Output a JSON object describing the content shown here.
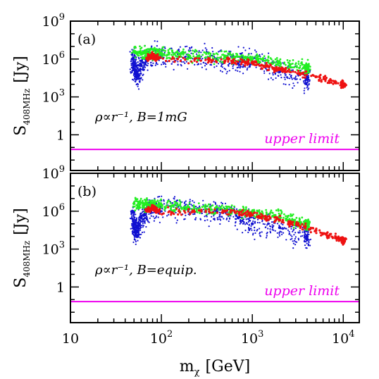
{
  "chart_data": {
    "type": "scatter",
    "xlabel": "m",
    "xlabel_sub": "χ",
    "xlabel_unit": "[GeV]",
    "xscale": "log",
    "xlim": [
      10,
      15000
    ],
    "x_ticks": [
      {
        "value": 10,
        "base": "10",
        "exp": ""
      },
      {
        "value": 100,
        "base": "10",
        "exp": "2"
      },
      {
        "value": 1000,
        "base": "10",
        "exp": "3"
      },
      {
        "value": 10000,
        "base": "10",
        "exp": "4"
      }
    ],
    "colors": {
      "blue": "#1010d0",
      "green": "#22ee22",
      "red": "#ee1111",
      "limit": "#ee00ee",
      "axis": "#000000"
    },
    "panels": [
      {
        "label": "(a)",
        "annotation": "ρ∝r⁻¹,  B=1mG",
        "ylabel": "S",
        "ylabel_sub": "408MHz",
        "ylabel_unit": "[Jy]",
        "yscale": "log",
        "ylim": [
          0.0015,
          1000000000.0
        ],
        "y_ticks": [
          {
            "value": 1,
            "base": "1",
            "exp": ""
          },
          {
            "value": 1000,
            "base": "10",
            "exp": "3"
          },
          {
            "value": 1000000,
            "base": "10",
            "exp": "6"
          },
          {
            "value": 1000000000,
            "base": "10",
            "exp": "9"
          }
        ],
        "upper_limit": {
          "value": 0.07,
          "label": "upper limit"
        },
        "series": [
          {
            "color": "blue",
            "points": [
              [
                48,
                1000000.0
              ],
              [
                50,
                300000.0
              ],
              [
                52,
                100000.0
              ],
              [
                55,
                50000.0
              ],
              [
                60,
                300000.0
              ],
              [
                70,
                1000000.0
              ],
              [
                100,
                2000000.0
              ],
              [
                200,
                1500000.0
              ],
              [
                400,
                1000000.0
              ],
              [
                700,
                500000.0
              ],
              [
                1000,
                1000000.0
              ],
              [
                2000,
                100000.0
              ],
              [
                4000,
                30000.0
              ]
            ]
          },
          {
            "color": "green",
            "points": [
              [
                50,
                4000000.0
              ],
              [
                70,
                3000000.0
              ],
              [
                100,
                3000000.0
              ],
              [
                200,
                2000000.0
              ],
              [
                500,
                1500000.0
              ],
              [
                1000,
                1000000.0
              ],
              [
                2000,
                500000.0
              ],
              [
                4000,
                200000.0
              ]
            ]
          },
          {
            "color": "red",
            "points": [
              [
                70,
                1000000.0
              ],
              [
                80,
                2000000.0
              ],
              [
                90,
                1000000.0
              ],
              [
                500,
                700000.0
              ],
              [
                1000,
                500000.0
              ],
              [
                2000,
                150000.0
              ],
              [
                5000,
                40000.0
              ],
              [
                10000,
                10000.0
              ]
            ]
          }
        ]
      },
      {
        "label": "(b)",
        "annotation": "ρ∝r⁻¹,  B=equip.",
        "ylabel": "S",
        "ylabel_sub": "408MHz",
        "ylabel_unit": "[Jy]",
        "yscale": "log",
        "ylim": [
          0.0015,
          1000000000.0
        ],
        "y_ticks": [
          {
            "value": 1,
            "base": "1",
            "exp": ""
          },
          {
            "value": 1000,
            "base": "10",
            "exp": "3"
          },
          {
            "value": 1000000,
            "base": "10",
            "exp": "6"
          },
          {
            "value": 1000000000,
            "base": "10",
            "exp": "9"
          }
        ],
        "upper_limit": {
          "value": 0.07,
          "label": "upper limit"
        },
        "series": [
          {
            "color": "blue",
            "points": [
              [
                48,
                1000000.0
              ],
              [
                50,
                50000.0
              ],
              [
                52,
                30000.0
              ],
              [
                55,
                50000.0
              ],
              [
                60,
                300000.0
              ],
              [
                70,
                1000000.0
              ],
              [
                100,
                2000000.0
              ],
              [
                200,
                1500000.0
              ],
              [
                400,
                1000000.0
              ],
              [
                700,
                300000.0
              ],
              [
                1000,
                100000.0
              ],
              [
                2000,
                50000.0
              ],
              [
                4000,
                10000.0
              ]
            ]
          },
          {
            "color": "green",
            "points": [
              [
                50,
                4000000.0
              ],
              [
                70,
                3000000.0
              ],
              [
                100,
                3000000.0
              ],
              [
                200,
                2000000.0
              ],
              [
                500,
                1200000.0
              ],
              [
                1000,
                800000.0
              ],
              [
                2000,
                400000.0
              ],
              [
                4000,
                100000.0
              ]
            ]
          },
          {
            "color": "red",
            "points": [
              [
                70,
                1000000.0
              ],
              [
                80,
                2000000.0
              ],
              [
                90,
                1000000.0
              ],
              [
                500,
                1000000.0
              ],
              [
                1000,
                500000.0
              ],
              [
                2000,
                200000.0
              ],
              [
                5000,
                30000.0
              ],
              [
                10000,
                5000.0
              ]
            ]
          }
        ]
      }
    ]
  }
}
